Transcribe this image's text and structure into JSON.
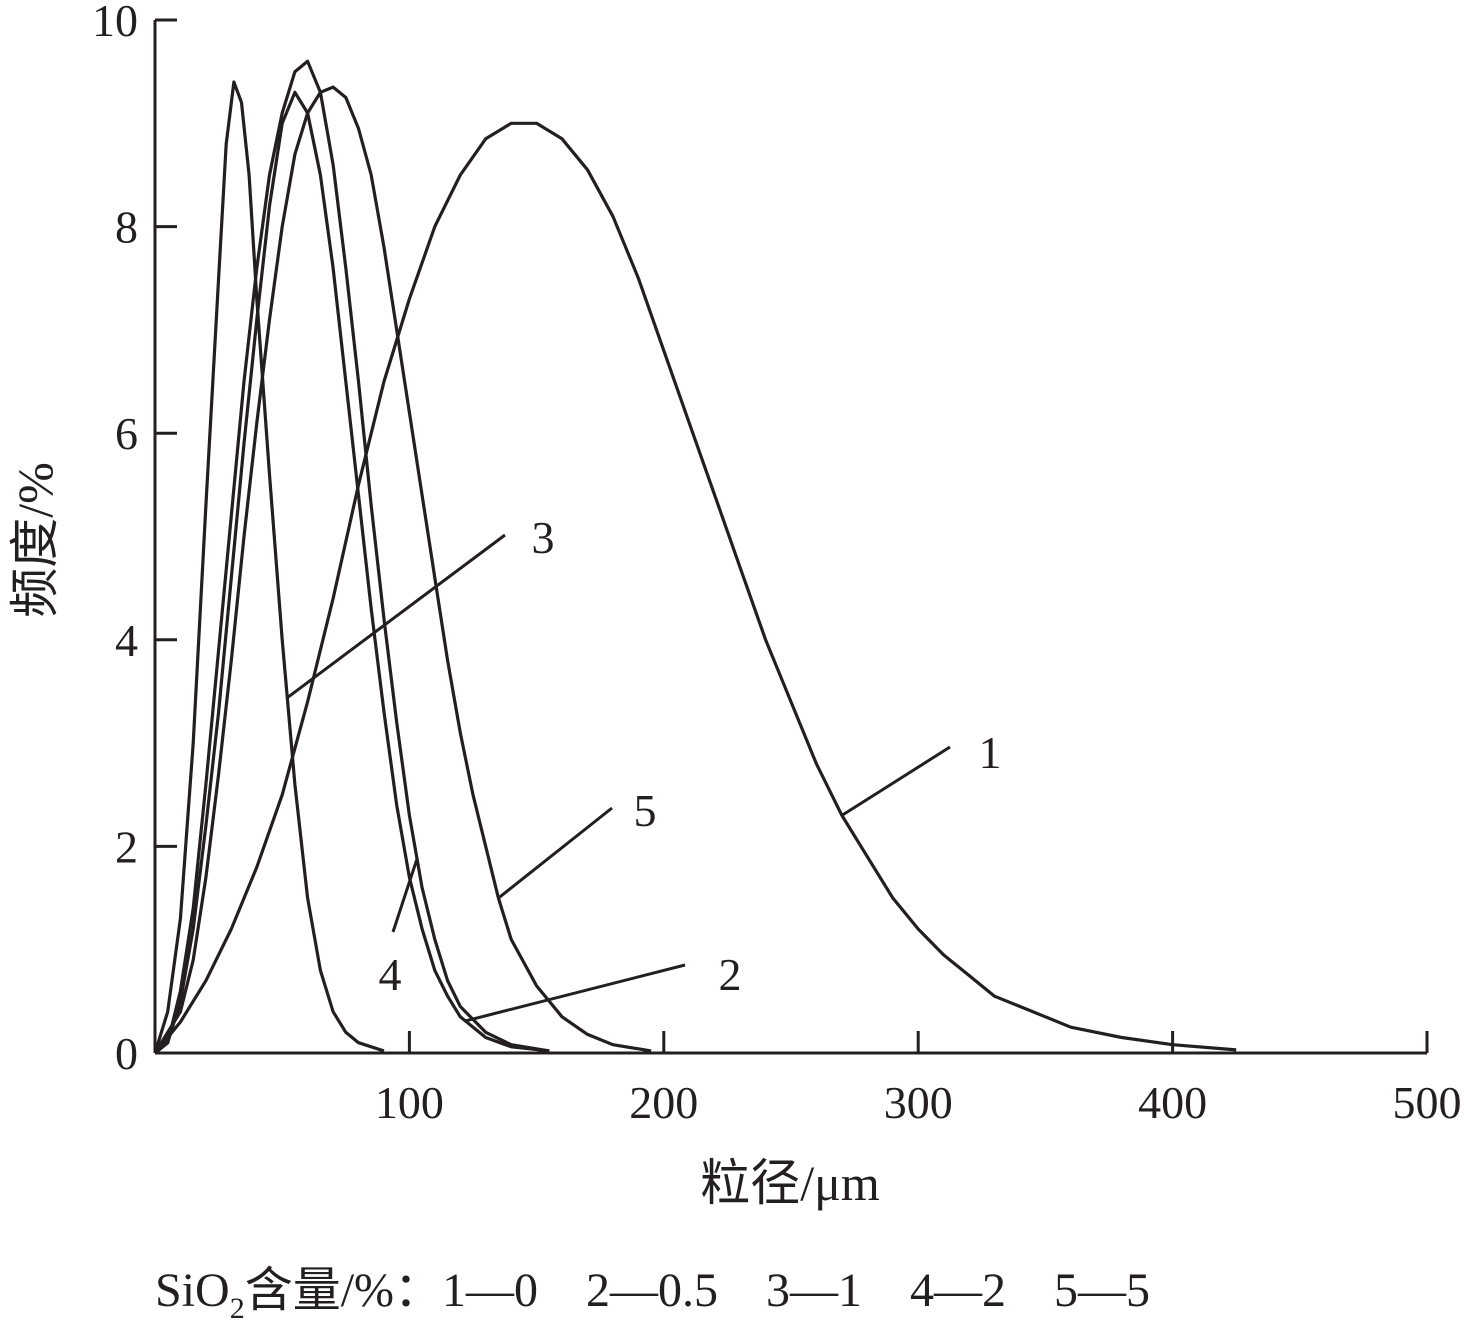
{
  "chart_data": {
    "type": "line",
    "xlabel": "粒径/μm",
    "ylabel": "频度/%",
    "xlim": [
      0,
      500
    ],
    "ylim": [
      0,
      10
    ],
    "x_ticks": [
      "100",
      "200",
      "300",
      "400",
      "500"
    ],
    "y_ticks": [
      "0",
      "2",
      "4",
      "6",
      "8",
      "10"
    ],
    "grid": false,
    "colors": {
      "line": "#231f20"
    },
    "series": [
      {
        "name": "1",
        "points": [
          [
            0,
            0
          ],
          [
            10,
            0.3
          ],
          [
            20,
            0.7
          ],
          [
            30,
            1.2
          ],
          [
            40,
            1.8
          ],
          [
            50,
            2.5
          ],
          [
            60,
            3.4
          ],
          [
            70,
            4.4
          ],
          [
            80,
            5.5
          ],
          [
            90,
            6.5
          ],
          [
            100,
            7.3
          ],
          [
            110,
            8.0
          ],
          [
            120,
            8.5
          ],
          [
            130,
            8.85
          ],
          [
            140,
            9.0
          ],
          [
            150,
            9.0
          ],
          [
            160,
            8.85
          ],
          [
            170,
            8.55
          ],
          [
            180,
            8.1
          ],
          [
            190,
            7.5
          ],
          [
            200,
            6.8
          ],
          [
            210,
            6.1
          ],
          [
            220,
            5.4
          ],
          [
            230,
            4.7
          ],
          [
            240,
            4.0
          ],
          [
            250,
            3.4
          ],
          [
            260,
            2.8
          ],
          [
            270,
            2.3
          ],
          [
            280,
            1.9
          ],
          [
            290,
            1.5
          ],
          [
            300,
            1.2
          ],
          [
            310,
            0.95
          ],
          [
            320,
            0.75
          ],
          [
            330,
            0.55
          ],
          [
            340,
            0.45
          ],
          [
            350,
            0.35
          ],
          [
            360,
            0.25
          ],
          [
            380,
            0.15
          ],
          [
            400,
            0.08
          ],
          [
            425,
            0.03
          ]
        ]
      },
      {
        "name": "2",
        "points": [
          [
            0,
            0
          ],
          [
            5,
            0.1
          ],
          [
            10,
            0.5
          ],
          [
            15,
            1.2
          ],
          [
            20,
            2.2
          ],
          [
            25,
            3.3
          ],
          [
            30,
            4.6
          ],
          [
            35,
            5.9
          ],
          [
            40,
            7.1
          ],
          [
            45,
            8.2
          ],
          [
            50,
            9.0
          ],
          [
            55,
            9.3
          ],
          [
            60,
            9.1
          ],
          [
            65,
            8.5
          ],
          [
            70,
            7.6
          ],
          [
            75,
            6.5
          ],
          [
            80,
            5.4
          ],
          [
            85,
            4.3
          ],
          [
            90,
            3.3
          ],
          [
            95,
            2.4
          ],
          [
            100,
            1.7
          ],
          [
            105,
            1.2
          ],
          [
            110,
            0.8
          ],
          [
            115,
            0.55
          ],
          [
            120,
            0.35
          ],
          [
            130,
            0.15
          ],
          [
            140,
            0.06
          ],
          [
            155,
            0.02
          ]
        ]
      },
      {
        "name": "3",
        "points": [
          [
            0,
            0
          ],
          [
            5,
            0.4
          ],
          [
            10,
            1.3
          ],
          [
            15,
            3.0
          ],
          [
            20,
            5.3
          ],
          [
            25,
            7.5
          ],
          [
            28,
            8.8
          ],
          [
            31,
            9.4
          ],
          [
            34,
            9.2
          ],
          [
            37,
            8.5
          ],
          [
            40,
            7.3
          ],
          [
            45,
            5.6
          ],
          [
            50,
            4.0
          ],
          [
            55,
            2.6
          ],
          [
            60,
            1.5
          ],
          [
            65,
            0.8
          ],
          [
            70,
            0.4
          ],
          [
            75,
            0.2
          ],
          [
            80,
            0.1
          ],
          [
            90,
            0.02
          ]
        ]
      },
      {
        "name": "4",
        "points": [
          [
            0,
            0
          ],
          [
            5,
            0.1
          ],
          [
            10,
            0.6
          ],
          [
            15,
            1.4
          ],
          [
            20,
            2.6
          ],
          [
            25,
            3.9
          ],
          [
            30,
            5.2
          ],
          [
            35,
            6.5
          ],
          [
            40,
            7.6
          ],
          [
            45,
            8.5
          ],
          [
            50,
            9.1
          ],
          [
            55,
            9.5
          ],
          [
            60,
            9.6
          ],
          [
            65,
            9.3
          ],
          [
            70,
            8.6
          ],
          [
            75,
            7.6
          ],
          [
            80,
            6.5
          ],
          [
            85,
            5.3
          ],
          [
            90,
            4.2
          ],
          [
            95,
            3.2
          ],
          [
            100,
            2.3
          ],
          [
            105,
            1.6
          ],
          [
            110,
            1.1
          ],
          [
            115,
            0.7
          ],
          [
            120,
            0.45
          ],
          [
            130,
            0.2
          ],
          [
            140,
            0.08
          ],
          [
            155,
            0.02
          ]
        ]
      },
      {
        "name": "5",
        "points": [
          [
            0,
            0
          ],
          [
            10,
            0.4
          ],
          [
            15,
            0.9
          ],
          [
            20,
            1.7
          ],
          [
            25,
            2.7
          ],
          [
            30,
            3.8
          ],
          [
            35,
            5.0
          ],
          [
            40,
            6.1
          ],
          [
            45,
            7.1
          ],
          [
            50,
            8.0
          ],
          [
            55,
            8.7
          ],
          [
            60,
            9.1
          ],
          [
            65,
            9.3
          ],
          [
            70,
            9.35
          ],
          [
            75,
            9.25
          ],
          [
            80,
            8.95
          ],
          [
            85,
            8.5
          ],
          [
            90,
            7.8
          ],
          [
            95,
            7.0
          ],
          [
            100,
            6.2
          ],
          [
            105,
            5.4
          ],
          [
            110,
            4.6
          ],
          [
            115,
            3.8
          ],
          [
            120,
            3.1
          ],
          [
            125,
            2.5
          ],
          [
            130,
            2.0
          ],
          [
            135,
            1.5
          ],
          [
            140,
            1.1
          ],
          [
            150,
            0.65
          ],
          [
            160,
            0.35
          ],
          [
            170,
            0.18
          ],
          [
            180,
            0.08
          ],
          [
            195,
            0.02
          ]
        ]
      }
    ],
    "annotations": [
      {
        "text": "1",
        "series": "1"
      },
      {
        "text": "2",
        "series": "2"
      },
      {
        "text": "3",
        "series": "3"
      },
      {
        "text": "4",
        "series": "4"
      },
      {
        "text": "5",
        "series": "5"
      }
    ],
    "footer": {
      "prefix": "SiO",
      "subscript": "2",
      "suffix": "含量/%：1—0　2—0.5　3—1　4—2　5—5"
    }
  }
}
